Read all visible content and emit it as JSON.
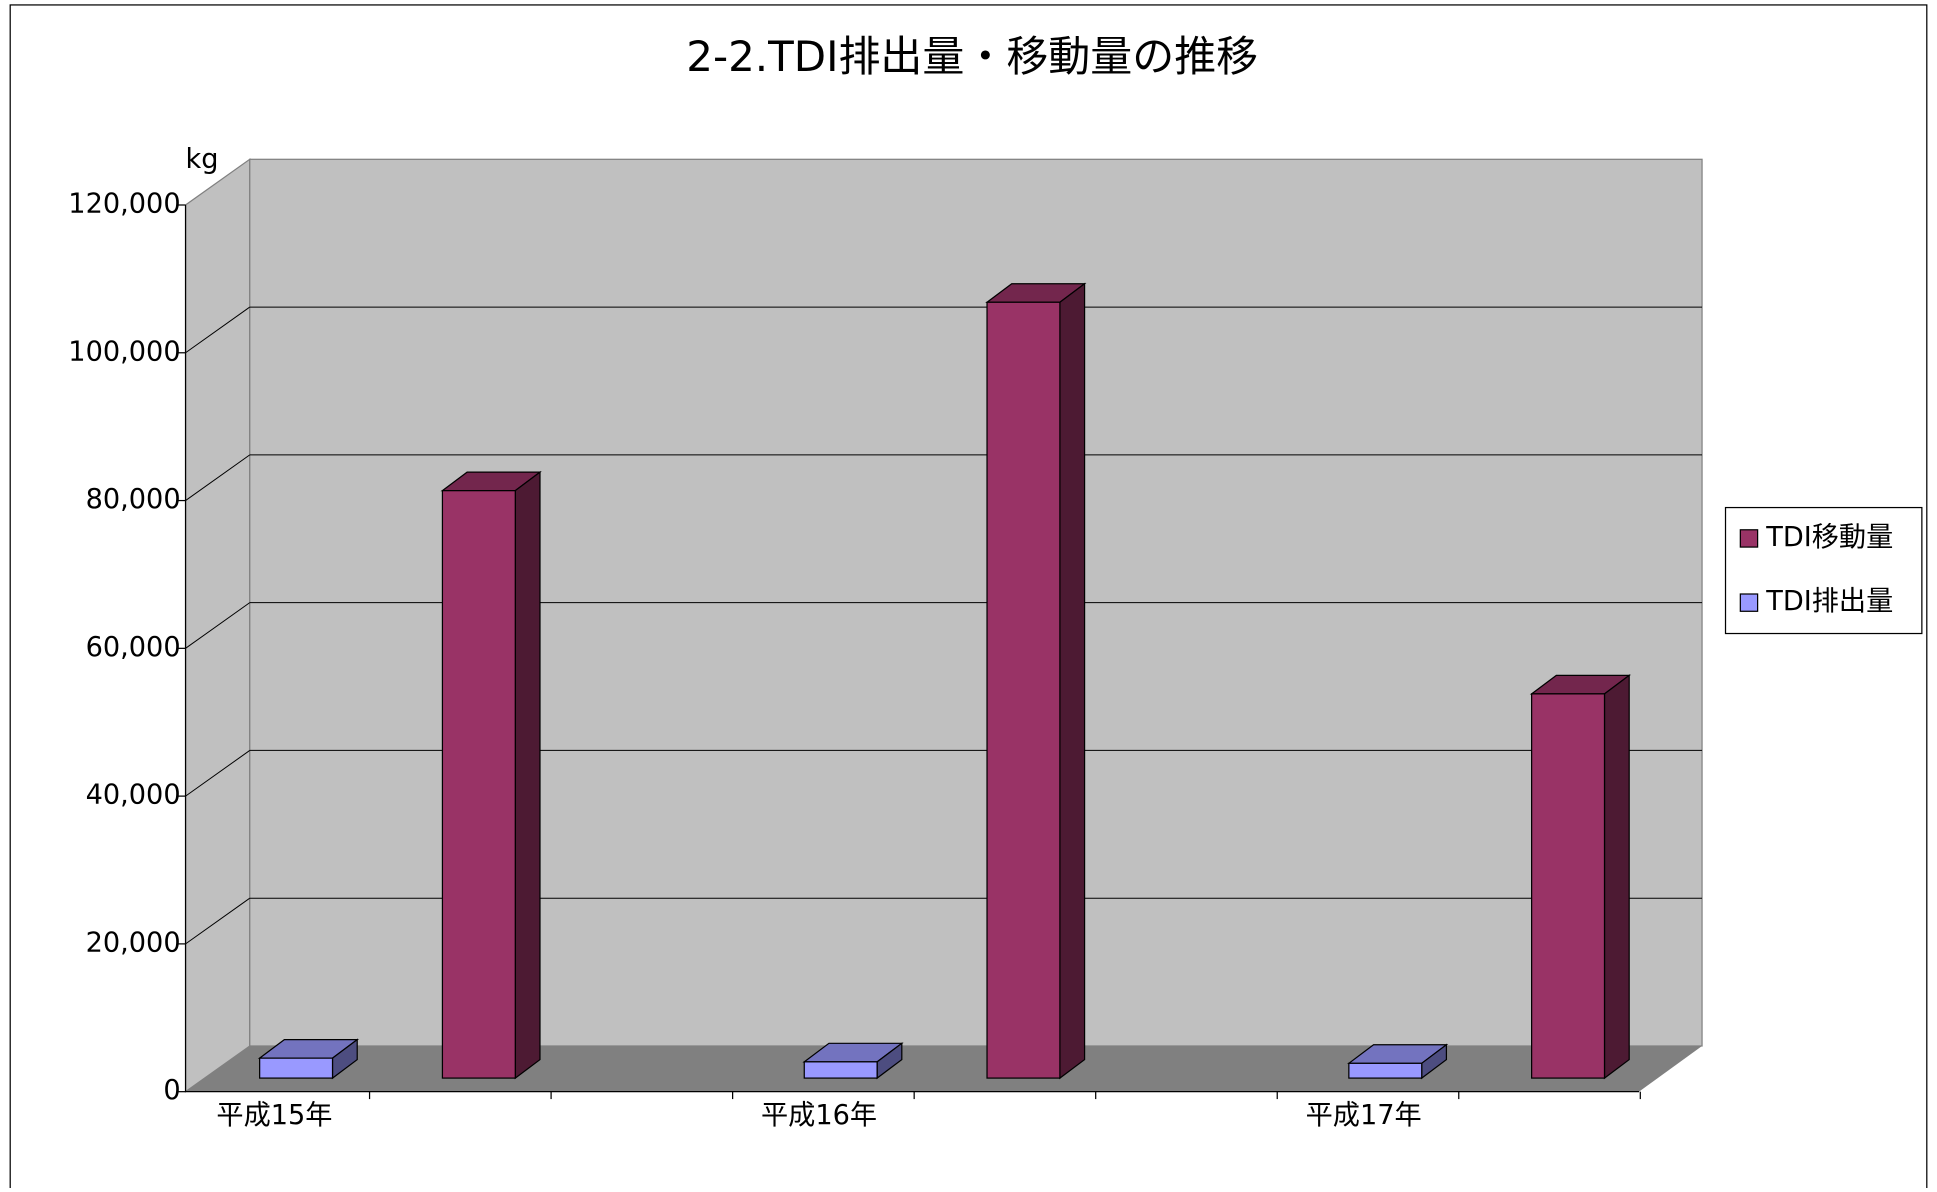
{
  "chart_data": {
    "type": "bar3d",
    "title": "2-2.TDI排出量・移動量の推移",
    "y_axis_label": "kg",
    "categories": [
      "平成15年",
      "平成16年",
      "平成17年"
    ],
    "series": [
      {
        "name": "TDI排出量",
        "color": "#9999ff",
        "values": [
          2700,
          2200,
          2000
        ]
      },
      {
        "name": "TDI移動量",
        "color": "#993366",
        "values": [
          79500,
          105000,
          52000
        ]
      }
    ],
    "ylim": [
      0,
      120000
    ],
    "yticks": [
      0,
      {
        "value": 20000,
        "label": "20,000"
      },
      {
        "value": 40000,
        "label": "40,000"
      },
      {
        "value": 60000,
        "label": "60,000"
      },
      {
        "value": 80000,
        "label": "80,000"
      },
      {
        "value": 100000,
        "label": "100,000"
      },
      {
        "value": 120000,
        "label": "120,000"
      }
    ],
    "grid": true,
    "legend": "right"
  }
}
